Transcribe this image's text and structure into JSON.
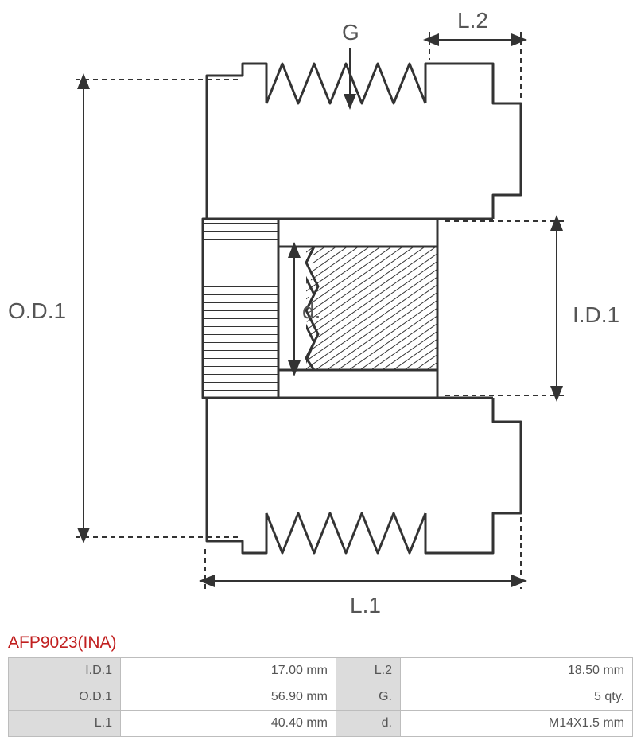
{
  "part": {
    "title": "AFP9023(INA)"
  },
  "diagram": {
    "labels": {
      "G": "G",
      "L2": "L.2",
      "OD1": "O.D.1",
      "d": "d.",
      "ID1": "I.D.1",
      "L1": "L.1"
    },
    "stroke": "#333333",
    "stroke_width": 2,
    "font_family": "Segoe UI, Arial, sans-serif",
    "label_fontsize": 28,
    "label_color": "#555555"
  },
  "spec_rows": [
    {
      "l1": "I.D.1",
      "v1": "17.00 mm",
      "l2": "L.2",
      "v2": "18.50 mm"
    },
    {
      "l1": "O.D.1",
      "v1": "56.90 mm",
      "l2": "G.",
      "v2": "5 qty."
    },
    {
      "l1": "L.1",
      "v1": "40.40 mm",
      "l2": "d.",
      "v2": "M14X1.5 mm"
    }
  ]
}
